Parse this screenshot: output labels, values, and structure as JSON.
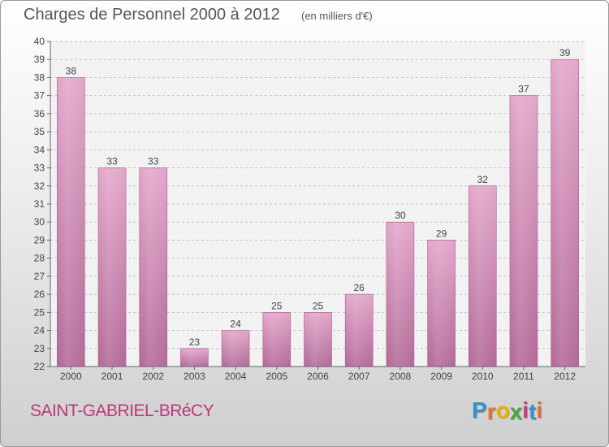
{
  "chart_data": {
    "type": "bar",
    "title": "Charges de Personnel 2000 à 2012",
    "subtitle": "(en milliers d'€)",
    "categories": [
      "2000",
      "2001",
      "2002",
      "2003",
      "2004",
      "2005",
      "2006",
      "2007",
      "2008",
      "2009",
      "2010",
      "2011",
      "2012"
    ],
    "values": [
      38,
      33,
      33,
      23,
      24,
      25,
      25,
      26,
      30,
      29,
      32,
      37,
      39
    ],
    "ylim": [
      22,
      40
    ],
    "yticks": [
      22,
      23,
      24,
      25,
      26,
      27,
      28,
      29,
      30,
      31,
      32,
      33,
      34,
      35,
      36,
      37,
      38,
      39,
      40
    ],
    "grid": true,
    "bar_color": "#d990ba"
  },
  "commune": "SAINT-GABRIEL-BRéCY",
  "logo": {
    "letters": [
      "P",
      "r",
      "o",
      "x",
      "i",
      "t",
      "i"
    ],
    "colors": [
      "#3a8fd0",
      "#e0702a",
      "#f0b000",
      "#4aa43c",
      "#d03a7a",
      "#3a8fd0",
      "#e0702a"
    ]
  }
}
